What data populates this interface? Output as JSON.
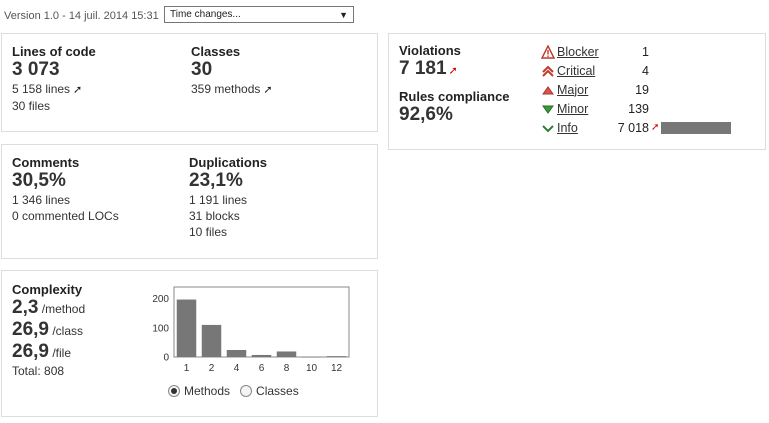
{
  "header": {
    "version_text": "Version 1.0 - 14 juil. 2014 15:31",
    "time_select_value": "Time changes..."
  },
  "size": {
    "loc_label": "Lines of code",
    "loc_value": "3 073",
    "lines": "5 158 lines",
    "files": "30 files",
    "classes_label": "Classes",
    "classes_value": "30",
    "methods": "359 methods"
  },
  "comments": {
    "comments_label": "Comments",
    "comments_value": "30,5%",
    "comment_lines": "1 346 lines",
    "commented_locs": "0 commented LOCs",
    "dup_label": "Duplications",
    "dup_value": "23,1%",
    "dup_lines": "1 191 lines",
    "dup_blocks": "31 blocks",
    "dup_files": "10 files"
  },
  "complexity": {
    "label": "Complexity",
    "per_method_value": "2,3",
    "per_method_unit": "/method",
    "per_class_value": "26,9",
    "per_class_unit": "/class",
    "per_file_value": "26,9",
    "per_file_unit": "/file",
    "total": "Total: 808",
    "radio_methods": "Methods",
    "radio_classes": "Classes",
    "selected": "Methods"
  },
  "chart_data": {
    "type": "bar",
    "categories": [
      "1",
      "2",
      "4",
      "6",
      "8",
      "10",
      "12"
    ],
    "values": [
      197,
      110,
      24,
      7,
      19,
      1,
      3
    ],
    "yticks": [
      "0",
      "100",
      "200"
    ],
    "ylim": [
      0,
      240
    ],
    "bar_color": "#777777"
  },
  "violations": {
    "label": "Violations",
    "value": "7 181",
    "compliance_label": "Rules compliance",
    "compliance_value": "92,6%",
    "severities": [
      {
        "name": "Blocker",
        "count": "1",
        "icon": "blocker-icon"
      },
      {
        "name": "Critical",
        "count": "4",
        "icon": "critical-icon"
      },
      {
        "name": "Major",
        "count": "19",
        "icon": "major-icon"
      },
      {
        "name": "Minor",
        "count": "139",
        "icon": "minor-icon"
      },
      {
        "name": "Info",
        "count": "7 018",
        "icon": "info-icon"
      }
    ],
    "info_bar_fraction": 1.0
  }
}
